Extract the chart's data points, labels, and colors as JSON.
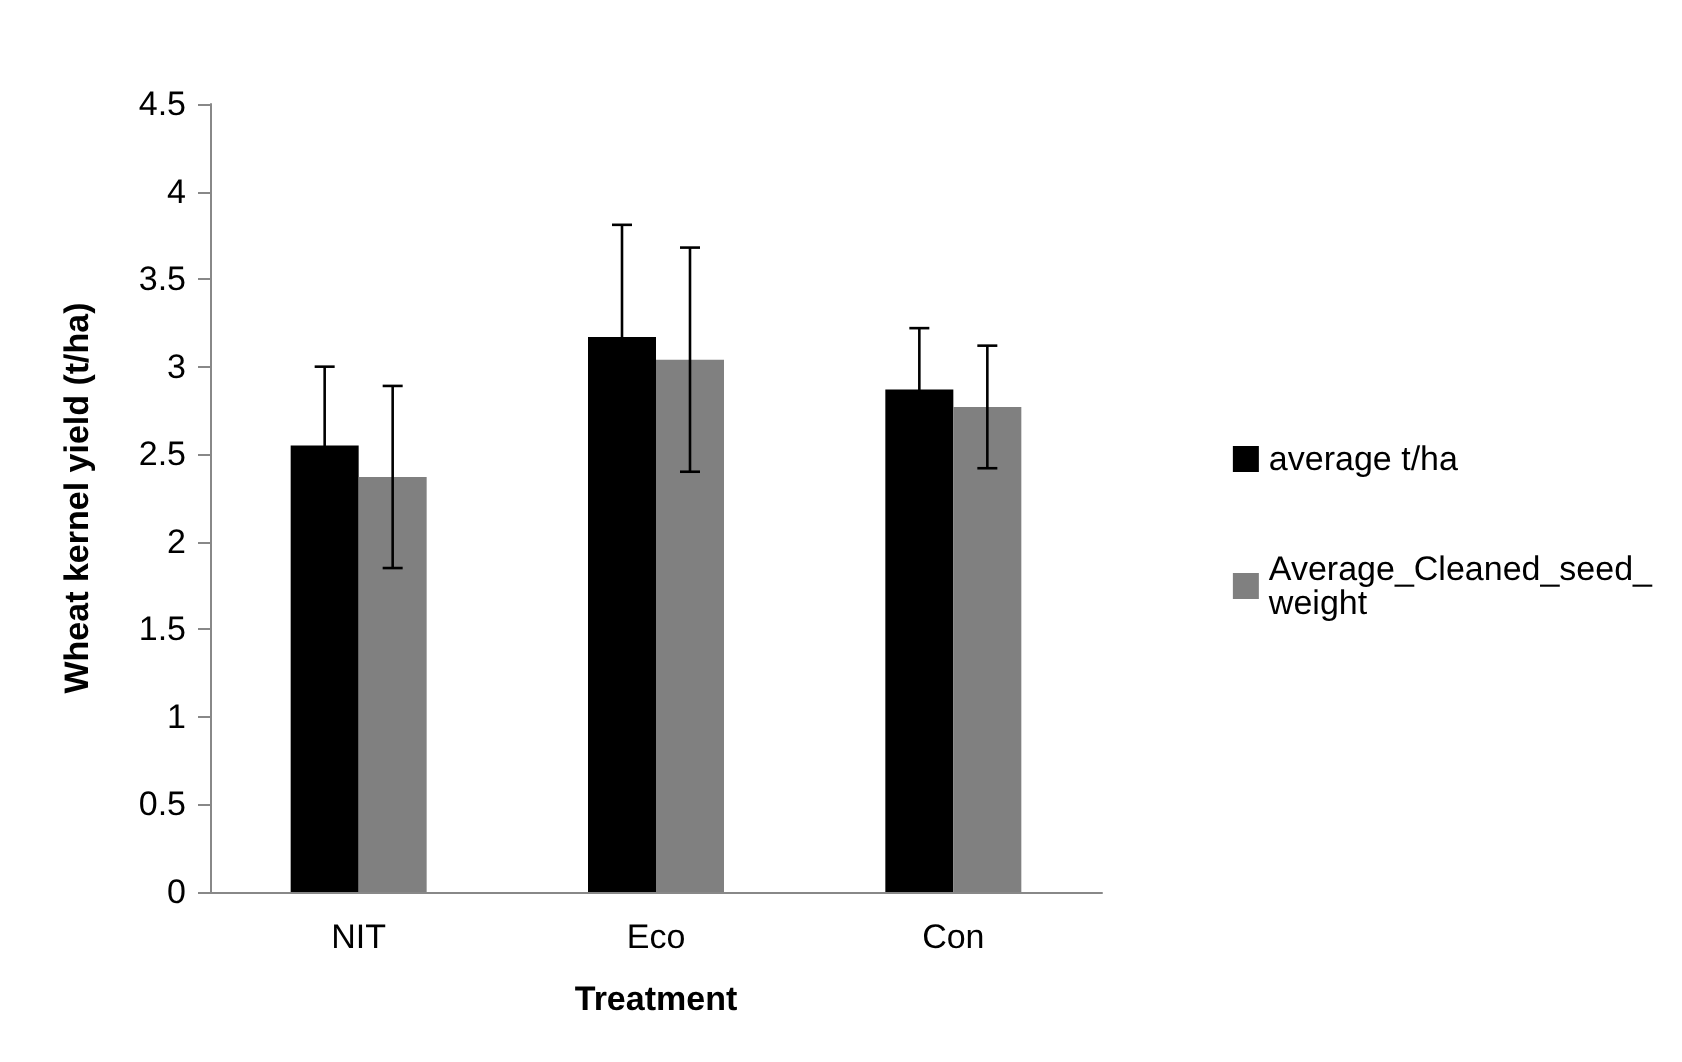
{
  "chart_data": {
    "type": "bar",
    "xlabel": "Treatment",
    "ylabel": "Wheat kernel yield (t/ha)",
    "categories": [
      "NIT",
      "Eco",
      "Con"
    ],
    "series": [
      {
        "name": "average t/ha",
        "color": "#000000",
        "values": [
          2.55,
          3.17,
          2.87
        ],
        "errors": [
          0.45,
          0.64,
          0.35
        ]
      },
      {
        "name": "Average_Cleaned_seed_weight",
        "color": "#808080",
        "values": [
          2.37,
          3.04,
          2.77
        ],
        "errors": [
          0.52,
          0.64,
          0.35
        ]
      }
    ],
    "ylim": [
      0,
      4.5
    ],
    "yticks": [
      0,
      0.5,
      1,
      1.5,
      2,
      2.5,
      3,
      3.5,
      4,
      4.5
    ],
    "grid": false,
    "legend": "right"
  }
}
